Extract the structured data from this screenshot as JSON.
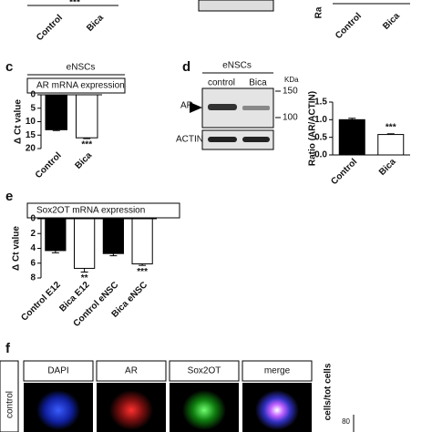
{
  "top_row": {
    "left_labels": [
      "Control",
      "Bica"
    ],
    "left_annotation": "***",
    "right_labels": [
      "Control",
      "Bica"
    ],
    "right_axis_fragment": "Ra"
  },
  "panel_letters": [
    "c",
    "d",
    "e",
    "f"
  ],
  "blot": {
    "group": "eNSCs",
    "lanes": [
      "control",
      "Bica"
    ],
    "unit": "KDa",
    "markers": [
      "150",
      "100"
    ],
    "rows": [
      "AR",
      "ACTIN"
    ]
  },
  "chart_data": [
    {
      "type": "bar",
      "group": "eNSCs",
      "title": "AR mRNA expression",
      "y_label": "Δ Ct value",
      "categories": [
        "Control",
        "Bica"
      ],
      "values": [
        13,
        16
      ],
      "errors": [
        0.3,
        0.3
      ],
      "colors": [
        "#000000",
        "#ffffff"
      ],
      "annotations": [
        null,
        "***"
      ],
      "ylim": [
        0,
        20
      ],
      "yticks": [
        0,
        5,
        10,
        15,
        20
      ],
      "inverted": true
    },
    {
      "type": "bar",
      "y_label": "Ratio (AR/ACTIN)",
      "categories": [
        "Control",
        "Bica"
      ],
      "values": [
        1.0,
        0.58
      ],
      "errors": [
        0.04,
        0.02
      ],
      "colors": [
        "#000000",
        "#ffffff"
      ],
      "annotations": [
        null,
        "***"
      ],
      "ylim": [
        0,
        1.5
      ],
      "yticks": [
        {
          "value": 0,
          "label": "0.0"
        },
        0.5,
        {
          "value": 1,
          "label": "1.0"
        },
        1.5
      ],
      "inverted": false
    },
    {
      "type": "bar",
      "title": "Sox2OT mRNA expression",
      "y_label": "Δ Ct value",
      "categories": [
        "Control E12",
        "Bica E12",
        "Control eNSC",
        "Bica eNSC"
      ],
      "values": [
        4.3,
        6.7,
        4.7,
        6.1
      ],
      "errors": [
        0.3,
        0.5,
        0.3,
        0.2
      ],
      "colors": [
        "#000000",
        "#ffffff",
        "#000000",
        "#ffffff"
      ],
      "annotations": [
        null,
        "**",
        null,
        "***"
      ],
      "ylim": [
        0,
        8
      ],
      "yticks": [
        0,
        2,
        4,
        6,
        8
      ],
      "inverted": true
    }
  ],
  "microscopy": {
    "channels": [
      "DAPI",
      "AR",
      "Sox2OT",
      "merge"
    ],
    "row_label": "control",
    "side_axis_label": "cells/tot cells",
    "side_tick": "80"
  }
}
